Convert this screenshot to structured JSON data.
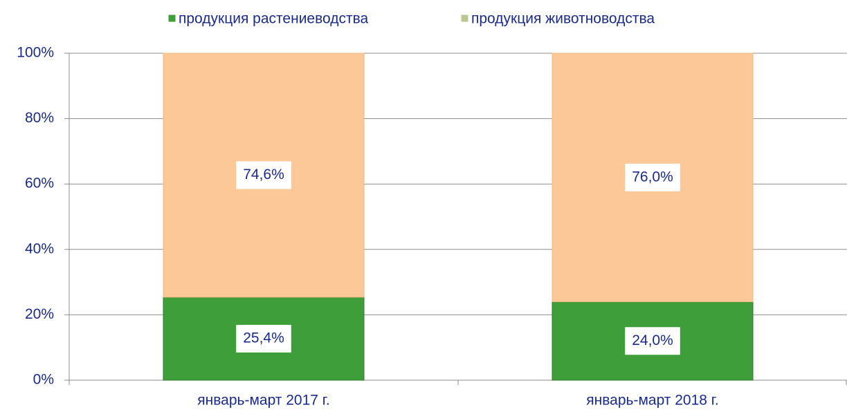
{
  "chart_data": {
    "type": "stacked_bar",
    "categories": [
      "январь-март 2017 г.",
      "январь-март 2018 г."
    ],
    "series": [
      {
        "name": "продукция растениеводства",
        "color": "#3e9e3a",
        "values": [
          25.4,
          24.0
        ],
        "value_labels": [
          "25,4%",
          "24,0%"
        ]
      },
      {
        "name": "продукция животноводства",
        "color": "#fcc898",
        "values": [
          74.6,
          76.0
        ],
        "value_labels": [
          "74,6%",
          "76,0%"
        ]
      }
    ],
    "ylim": [
      0,
      100
    ],
    "yticks": [
      {
        "value": 0,
        "label": "0%"
      },
      {
        "value": 20,
        "label": "20%"
      },
      {
        "value": 40,
        "label": "40%"
      },
      {
        "value": 60,
        "label": "60%"
      },
      {
        "value": 80,
        "label": "80%"
      },
      {
        "value": 100,
        "label": "100%"
      }
    ],
    "grid": true,
    "legend": "top"
  }
}
